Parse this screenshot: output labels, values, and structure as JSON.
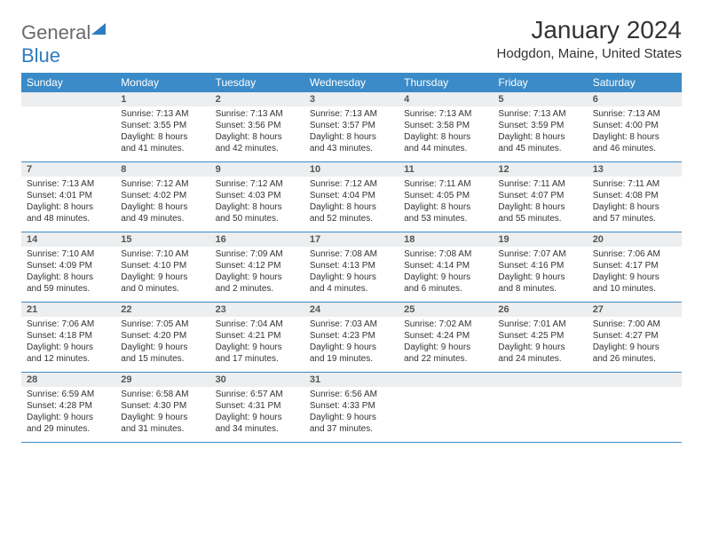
{
  "logo": {
    "general": "General",
    "blue": "Blue"
  },
  "title": "January 2024",
  "location": "Hodgdon, Maine, United States",
  "cal_header_bg": "#3b8bc8",
  "day_header_bg": "#eceeef",
  "weekdays": [
    "Sunday",
    "Monday",
    "Tuesday",
    "Wednesday",
    "Thursday",
    "Friday",
    "Saturday"
  ],
  "weeks": [
    [
      {
        "n": "",
        "sr": "",
        "ss": "",
        "dl": ""
      },
      {
        "n": "1",
        "sr": "Sunrise: 7:13 AM",
        "ss": "Sunset: 3:55 PM",
        "dl": "Daylight: 8 hours and 41 minutes."
      },
      {
        "n": "2",
        "sr": "Sunrise: 7:13 AM",
        "ss": "Sunset: 3:56 PM",
        "dl": "Daylight: 8 hours and 42 minutes."
      },
      {
        "n": "3",
        "sr": "Sunrise: 7:13 AM",
        "ss": "Sunset: 3:57 PM",
        "dl": "Daylight: 8 hours and 43 minutes."
      },
      {
        "n": "4",
        "sr": "Sunrise: 7:13 AM",
        "ss": "Sunset: 3:58 PM",
        "dl": "Daylight: 8 hours and 44 minutes."
      },
      {
        "n": "5",
        "sr": "Sunrise: 7:13 AM",
        "ss": "Sunset: 3:59 PM",
        "dl": "Daylight: 8 hours and 45 minutes."
      },
      {
        "n": "6",
        "sr": "Sunrise: 7:13 AM",
        "ss": "Sunset: 4:00 PM",
        "dl": "Daylight: 8 hours and 46 minutes."
      }
    ],
    [
      {
        "n": "7",
        "sr": "Sunrise: 7:13 AM",
        "ss": "Sunset: 4:01 PM",
        "dl": "Daylight: 8 hours and 48 minutes."
      },
      {
        "n": "8",
        "sr": "Sunrise: 7:12 AM",
        "ss": "Sunset: 4:02 PM",
        "dl": "Daylight: 8 hours and 49 minutes."
      },
      {
        "n": "9",
        "sr": "Sunrise: 7:12 AM",
        "ss": "Sunset: 4:03 PM",
        "dl": "Daylight: 8 hours and 50 minutes."
      },
      {
        "n": "10",
        "sr": "Sunrise: 7:12 AM",
        "ss": "Sunset: 4:04 PM",
        "dl": "Daylight: 8 hours and 52 minutes."
      },
      {
        "n": "11",
        "sr": "Sunrise: 7:11 AM",
        "ss": "Sunset: 4:05 PM",
        "dl": "Daylight: 8 hours and 53 minutes."
      },
      {
        "n": "12",
        "sr": "Sunrise: 7:11 AM",
        "ss": "Sunset: 4:07 PM",
        "dl": "Daylight: 8 hours and 55 minutes."
      },
      {
        "n": "13",
        "sr": "Sunrise: 7:11 AM",
        "ss": "Sunset: 4:08 PM",
        "dl": "Daylight: 8 hours and 57 minutes."
      }
    ],
    [
      {
        "n": "14",
        "sr": "Sunrise: 7:10 AM",
        "ss": "Sunset: 4:09 PM",
        "dl": "Daylight: 8 hours and 59 minutes."
      },
      {
        "n": "15",
        "sr": "Sunrise: 7:10 AM",
        "ss": "Sunset: 4:10 PM",
        "dl": "Daylight: 9 hours and 0 minutes."
      },
      {
        "n": "16",
        "sr": "Sunrise: 7:09 AM",
        "ss": "Sunset: 4:12 PM",
        "dl": "Daylight: 9 hours and 2 minutes."
      },
      {
        "n": "17",
        "sr": "Sunrise: 7:08 AM",
        "ss": "Sunset: 4:13 PM",
        "dl": "Daylight: 9 hours and 4 minutes."
      },
      {
        "n": "18",
        "sr": "Sunrise: 7:08 AM",
        "ss": "Sunset: 4:14 PM",
        "dl": "Daylight: 9 hours and 6 minutes."
      },
      {
        "n": "19",
        "sr": "Sunrise: 7:07 AM",
        "ss": "Sunset: 4:16 PM",
        "dl": "Daylight: 9 hours and 8 minutes."
      },
      {
        "n": "20",
        "sr": "Sunrise: 7:06 AM",
        "ss": "Sunset: 4:17 PM",
        "dl": "Daylight: 9 hours and 10 minutes."
      }
    ],
    [
      {
        "n": "21",
        "sr": "Sunrise: 7:06 AM",
        "ss": "Sunset: 4:18 PM",
        "dl": "Daylight: 9 hours and 12 minutes."
      },
      {
        "n": "22",
        "sr": "Sunrise: 7:05 AM",
        "ss": "Sunset: 4:20 PM",
        "dl": "Daylight: 9 hours and 15 minutes."
      },
      {
        "n": "23",
        "sr": "Sunrise: 7:04 AM",
        "ss": "Sunset: 4:21 PM",
        "dl": "Daylight: 9 hours and 17 minutes."
      },
      {
        "n": "24",
        "sr": "Sunrise: 7:03 AM",
        "ss": "Sunset: 4:23 PM",
        "dl": "Daylight: 9 hours and 19 minutes."
      },
      {
        "n": "25",
        "sr": "Sunrise: 7:02 AM",
        "ss": "Sunset: 4:24 PM",
        "dl": "Daylight: 9 hours and 22 minutes."
      },
      {
        "n": "26",
        "sr": "Sunrise: 7:01 AM",
        "ss": "Sunset: 4:25 PM",
        "dl": "Daylight: 9 hours and 24 minutes."
      },
      {
        "n": "27",
        "sr": "Sunrise: 7:00 AM",
        "ss": "Sunset: 4:27 PM",
        "dl": "Daylight: 9 hours and 26 minutes."
      }
    ],
    [
      {
        "n": "28",
        "sr": "Sunrise: 6:59 AM",
        "ss": "Sunset: 4:28 PM",
        "dl": "Daylight: 9 hours and 29 minutes."
      },
      {
        "n": "29",
        "sr": "Sunrise: 6:58 AM",
        "ss": "Sunset: 4:30 PM",
        "dl": "Daylight: 9 hours and 31 minutes."
      },
      {
        "n": "30",
        "sr": "Sunrise: 6:57 AM",
        "ss": "Sunset: 4:31 PM",
        "dl": "Daylight: 9 hours and 34 minutes."
      },
      {
        "n": "31",
        "sr": "Sunrise: 6:56 AM",
        "ss": "Sunset: 4:33 PM",
        "dl": "Daylight: 9 hours and 37 minutes."
      },
      {
        "n": "",
        "sr": "",
        "ss": "",
        "dl": ""
      },
      {
        "n": "",
        "sr": "",
        "ss": "",
        "dl": ""
      },
      {
        "n": "",
        "sr": "",
        "ss": "",
        "dl": ""
      }
    ]
  ]
}
